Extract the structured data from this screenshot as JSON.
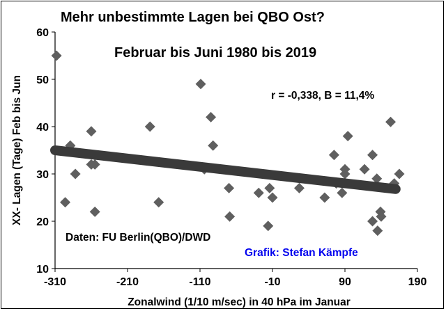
{
  "chart_data": {
    "type": "scatter",
    "title": "Mehr unbestimmte Lagen bei QBO Ost?",
    "subtitle": "Februar bis Juni 1980 bis 2019",
    "stats": "r = -0,338, B = 11,4%",
    "source": "Daten: FU Berlin(QBO)/DWD",
    "credit": "Grafik: Stefan Kämpfe",
    "xlabel": "Zonalwind  (1/10 m/sec) in 40 hPa im Januar",
    "ylabel": "XX- Lagen (Tage) Feb bis Jun",
    "xlim": [
      -310,
      190
    ],
    "ylim": [
      10,
      60
    ],
    "xticks": [
      "-310",
      "-210",
      "-110",
      "-10",
      "90",
      "190"
    ],
    "yticks": [
      "10",
      "20",
      "30",
      "40",
      "50",
      "60"
    ],
    "grid": false,
    "colors": {
      "points": "#5f5f5f",
      "trend": "#3a3a3a",
      "credit": "#0000ee"
    },
    "points": [
      {
        "x": -308,
        "y": 55
      },
      {
        "x": -296,
        "y": 24
      },
      {
        "x": -289,
        "y": 36
      },
      {
        "x": -282,
        "y": 30
      },
      {
        "x": -260,
        "y": 39
      },
      {
        "x": -260,
        "y": 32
      },
      {
        "x": -255,
        "y": 32
      },
      {
        "x": -255,
        "y": 22
      },
      {
        "x": -179,
        "y": 40
      },
      {
        "x": -167,
        "y": 24
      },
      {
        "x": -109,
        "y": 49
      },
      {
        "x": -104,
        "y": 31
      },
      {
        "x": -95,
        "y": 42
      },
      {
        "x": -92,
        "y": 36
      },
      {
        "x": -70,
        "y": 27
      },
      {
        "x": -69,
        "y": 21
      },
      {
        "x": -29,
        "y": 26
      },
      {
        "x": -16,
        "y": 19
      },
      {
        "x": -14,
        "y": 27
      },
      {
        "x": -10,
        "y": 25
      },
      {
        "x": 27,
        "y": 27
      },
      {
        "x": 62,
        "y": 25
      },
      {
        "x": 75,
        "y": 34
      },
      {
        "x": 78,
        "y": 28
      },
      {
        "x": 86,
        "y": 26
      },
      {
        "x": 90,
        "y": 31
      },
      {
        "x": 90,
        "y": 30
      },
      {
        "x": 94,
        "y": 38
      },
      {
        "x": 117,
        "y": 31
      },
      {
        "x": 128,
        "y": 20
      },
      {
        "x": 128,
        "y": 34
      },
      {
        "x": 134,
        "y": 29
      },
      {
        "x": 135,
        "y": 18
      },
      {
        "x": 139,
        "y": 22
      },
      {
        "x": 140,
        "y": 21
      },
      {
        "x": 153,
        "y": 41
      },
      {
        "x": 158,
        "y": 28
      },
      {
        "x": 165,
        "y": 30
      }
    ],
    "trendline": [
      {
        "x": -310,
        "y": 35
      },
      {
        "x": 160,
        "y": 26.8
      }
    ]
  }
}
